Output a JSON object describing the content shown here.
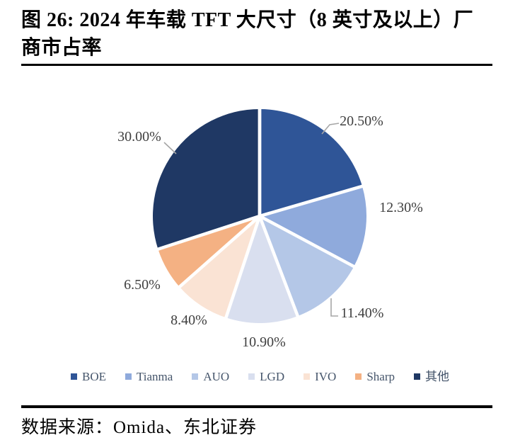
{
  "figure": {
    "title_line1": "图 26: 2024 年车载 TFT 大尺寸（8 英寸及以上）厂",
    "title_line2": "商市占率",
    "source": "数据来源：Omida、东北证券"
  },
  "chart_data": {
    "type": "pie",
    "title": "2024 年车载 TFT 大尺寸（8 英寸及以上）厂商市占率",
    "categories": [
      "BOE",
      "Tianma",
      "AUO",
      "LGD",
      "IVO",
      "Sharp",
      "其他"
    ],
    "values": [
      20.5,
      12.3,
      11.4,
      10.9,
      8.4,
      6.5,
      30.0
    ],
    "series": [
      {
        "name": "BOE",
        "value": 20.5,
        "label": "20.50%",
        "color": "#2F5597"
      },
      {
        "name": "Tianma",
        "value": 12.3,
        "label": "12.30%",
        "color": "#8FAADC"
      },
      {
        "name": "AUO",
        "value": 11.4,
        "label": "11.40%",
        "color": "#B4C7E7"
      },
      {
        "name": "LGD",
        "value": 10.9,
        "label": "10.90%",
        "color": "#D9DFEF"
      },
      {
        "name": "IVO",
        "value": 8.4,
        "label": "8.40%",
        "color": "#FAE3D4"
      },
      {
        "name": "Sharp",
        "value": 6.5,
        "label": "6.50%",
        "color": "#F4B183"
      },
      {
        "name": "其他",
        "value": 30.0,
        "label": "30.00%",
        "color": "#1F3864"
      }
    ],
    "start_angle_deg": 0,
    "direction": "clockwise",
    "legend_position": "bottom",
    "label_color": "#3F3F3F",
    "leader_line_color": "#A6A6A6",
    "legend_text_color": "#44546A",
    "slice_gap_color": "#FFFFFF"
  }
}
